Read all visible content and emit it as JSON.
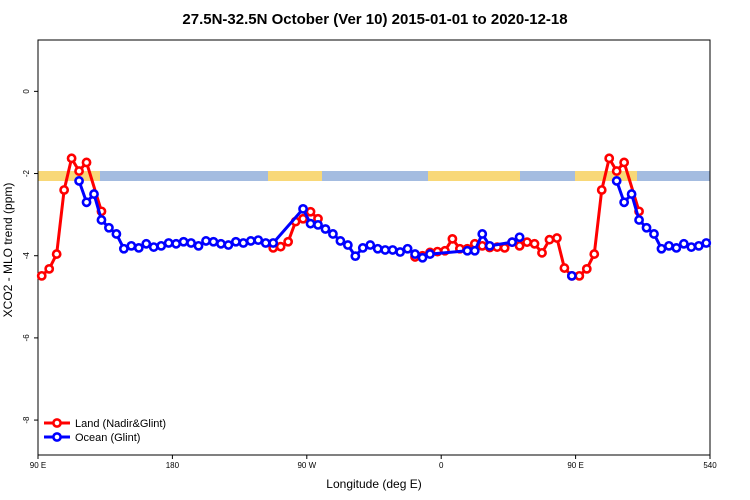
{
  "chart_data": {
    "type": "line",
    "title": "27.5N-32.5N October (Ver 10)   2015-01-01 to 2020-12-18",
    "x_label": "Longitude (deg E)",
    "y_label": "XCO2 - MLO trend (ppm)",
    "xlim": [
      90,
      540
    ],
    "ylim": [
      -8.85,
      1.25
    ],
    "xticks": [
      {
        "value": 90,
        "label": "90 E"
      },
      180,
      {
        "value": 270,
        "label": "90 W"
      },
      {
        "value": 360,
        "label": "0"
      },
      {
        "value": 450,
        "label": "90 E"
      },
      540
    ],
    "yticks": [
      0,
      -2,
      -4,
      -6,
      -8
    ],
    "legend": "bottom-left",
    "series": [
      {
        "name": "Land (Nadir&Glint)",
        "color": "#ff0000",
        "x": [
          92.5,
          97.5,
          102.5,
          107.5,
          112.5,
          117.5,
          122.5,
          132.5,
          137.5,
          247.5,
          252.5,
          257.5,
          262.5,
          267.5,
          272.5,
          277.5,
          282.5,
          342.5,
          347.5,
          352.5,
          357.5,
          362.5,
          367.5,
          372.5,
          377.5,
          382.5,
          387.5,
          392.5,
          397.5,
          402.5,
          407.5,
          412.5,
          417.5,
          422.5,
          427.5,
          432.5,
          437.5,
          442.5,
          447.5,
          452.5,
          457.5,
          462.5,
          467.5,
          472.5,
          477.5,
          482.5,
          492.5
        ],
        "values": [
          -4.49,
          -4.32,
          -3.96,
          -2.4,
          -1.63,
          -1.94,
          -1.73,
          -2.92,
          null,
          -3.81,
          -3.78,
          -3.66,
          -3.17,
          -3.1,
          -2.93,
          -3.1,
          null,
          -4.03,
          -4.0,
          -3.92,
          -3.9,
          -3.88,
          -3.59,
          -3.83,
          -3.83,
          -3.71,
          -3.76,
          -3.8,
          -3.79,
          -3.81,
          -3.67,
          -3.76,
          -3.67,
          -3.71,
          -3.93,
          -3.61,
          -3.57,
          -4.3,
          -4.49,
          -4.49,
          -4.32,
          -3.96,
          -2.4,
          -1.63,
          -1.94,
          -1.73,
          -2.92
        ]
      },
      {
        "name": "Ocean (Glint)",
        "color": "#0000ff",
        "x": [
          117.5,
          122.5,
          127.5,
          132.5,
          137.5,
          142.5,
          147.5,
          152.5,
          157.5,
          162.5,
          167.5,
          172.5,
          177.5,
          182.5,
          187.5,
          192.5,
          197.5,
          202.5,
          207.5,
          212.5,
          217.5,
          222.5,
          227.5,
          232.5,
          237.5,
          242.5,
          247.5,
          267.5,
          272.5,
          277.5,
          282.5,
          287.5,
          292.5,
          297.5,
          302.5,
          307.5,
          312.5,
          317.5,
          322.5,
          327.5,
          332.5,
          337.5,
          342.5,
          347.5,
          352.5,
          377.5,
          382.5,
          387.5,
          392.5,
          407.5,
          412.5,
          437.5,
          447.5,
          462.5,
          477.5,
          482.5,
          487.5,
          492.5,
          497.5,
          502.5,
          507.5,
          512.5,
          517.5,
          522.5,
          527.5,
          532.5,
          537.5
        ],
        "values": [
          -2.18,
          -2.7,
          -2.5,
          -3.13,
          -3.32,
          -3.47,
          -3.83,
          -3.76,
          -3.81,
          -3.71,
          -3.79,
          -3.76,
          -3.69,
          -3.71,
          -3.66,
          -3.69,
          -3.76,
          -3.64,
          -3.66,
          -3.71,
          -3.74,
          -3.66,
          -3.69,
          -3.64,
          -3.62,
          -3.69,
          -3.69,
          -2.86,
          -3.22,
          -3.25,
          -3.35,
          -3.47,
          -3.64,
          -3.74,
          -4.01,
          -3.81,
          -3.74,
          -3.83,
          -3.86,
          -3.86,
          -3.91,
          -3.83,
          -3.96,
          -4.05,
          -3.96,
          -3.88,
          -3.88,
          -3.47,
          -3.76,
          -3.67,
          -3.55,
          null,
          -4.49,
          null,
          -2.18,
          -2.7,
          -2.5,
          -3.13,
          -3.32,
          -3.47,
          -3.83,
          -3.76,
          -3.81,
          -3.71,
          -3.79,
          -3.76,
          -3.69
        ]
      }
    ]
  }
}
